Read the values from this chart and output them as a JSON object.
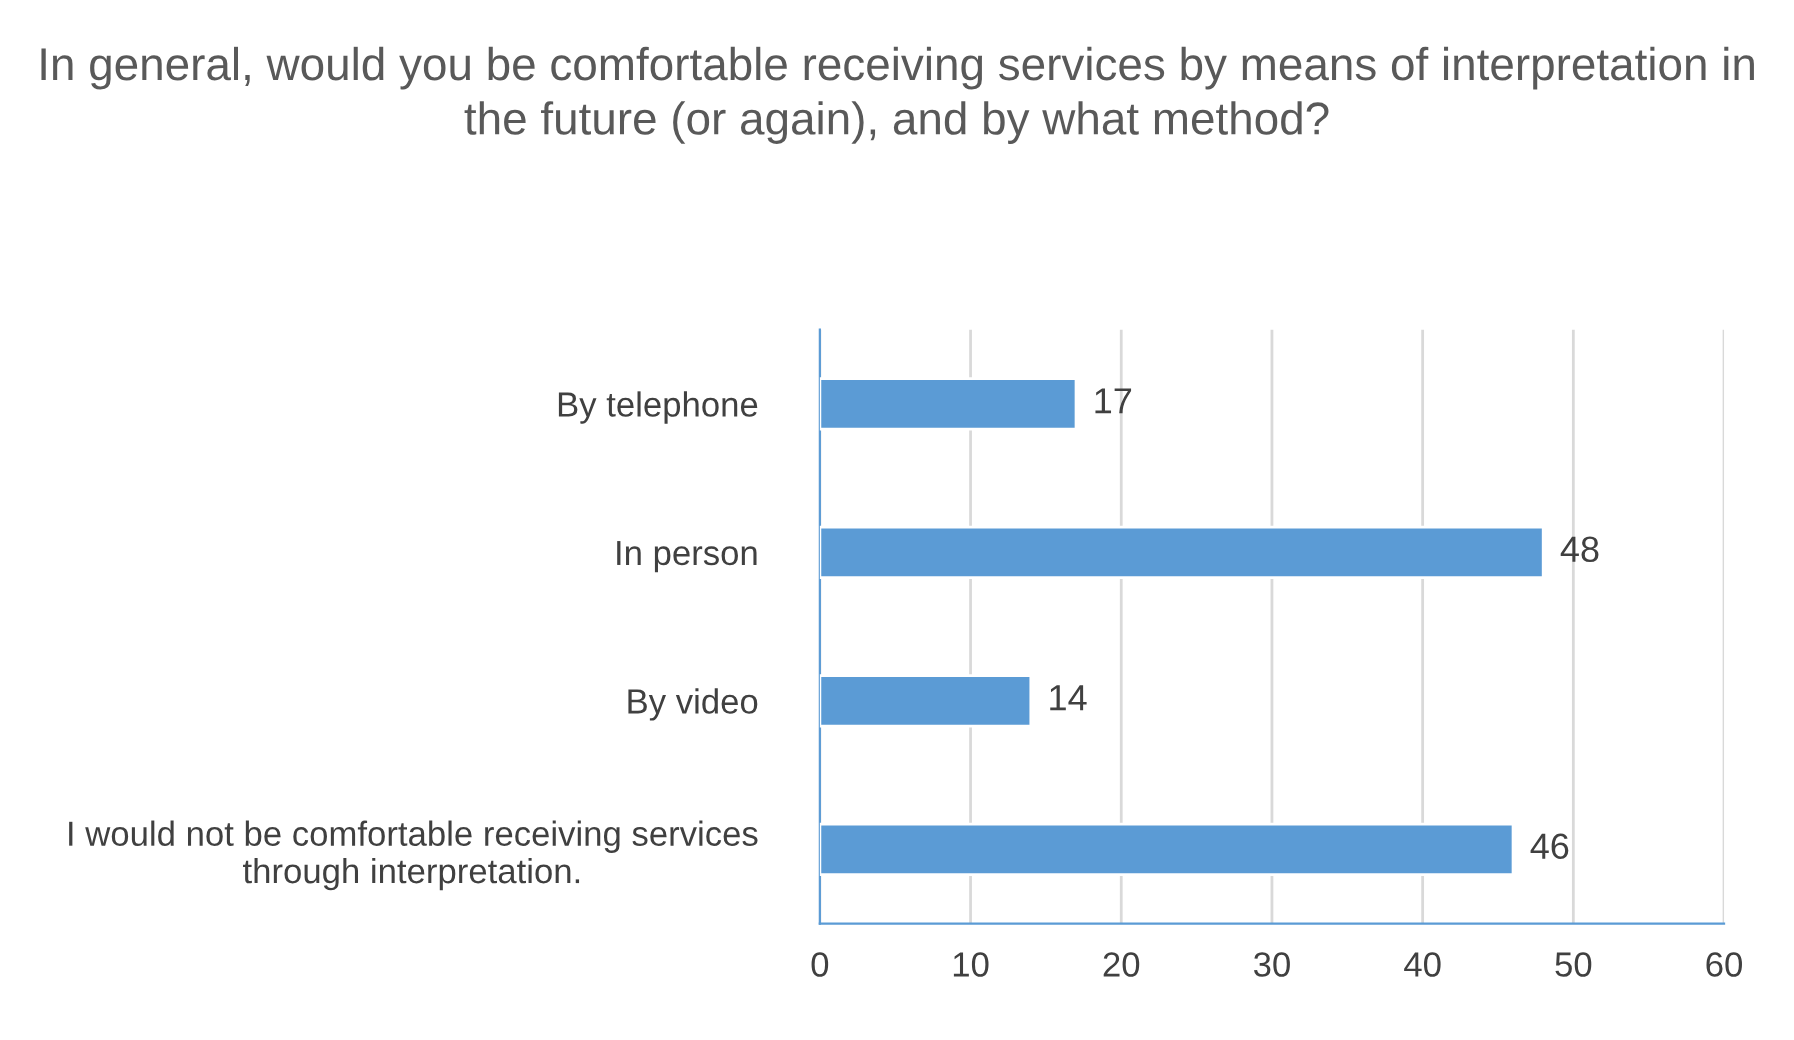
{
  "chart_data": {
    "type": "bar",
    "orientation": "horizontal",
    "title": "In general, would you be comfortable receiving services by means of interpretation in the future (or again), and by what method?",
    "categories": [
      "By telephone",
      "In person",
      "By video",
      "I would not be comfortable receiving services through interpretation."
    ],
    "values": [
      17,
      48,
      14,
      46
    ],
    "color": "#5b9bd5",
    "xlim": [
      0,
      60
    ],
    "xticks": [
      0,
      10,
      20,
      30,
      40,
      50,
      60
    ],
    "grid": "x",
    "data_labels": true,
    "legend": false
  }
}
